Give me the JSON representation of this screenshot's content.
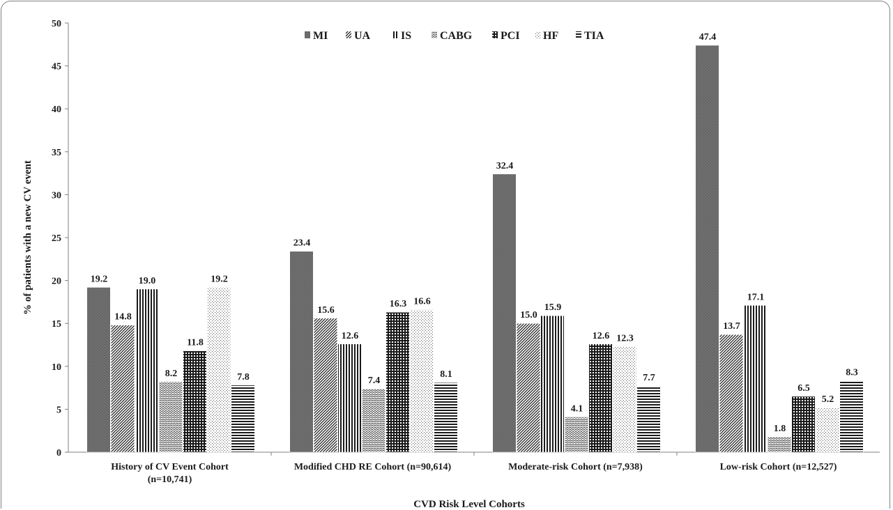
{
  "chart_data": {
    "type": "bar",
    "title": "",
    "xlabel": "CVD  Risk Level Cohorts",
    "ylabel": "% of patients with a new CV event",
    "ylim": [
      0,
      50
    ],
    "yticks": [
      0,
      5,
      10,
      15,
      20,
      25,
      30,
      35,
      40,
      45,
      50
    ],
    "grid": false,
    "legend_position": "top-center",
    "categories": [
      [
        "History of CV Event Cohort",
        "(n=10,741)"
      ],
      [
        "Modified CHD RE Cohort (n=90,614)"
      ],
      [
        "Moderate-risk Cohort (n=7,938)"
      ],
      [
        "Low-risk Cohort (n=12,527)"
      ]
    ],
    "series": [
      {
        "name": "MI",
        "pattern": "solid-gray",
        "values": [
          19.2,
          23.4,
          32.4,
          47.4
        ]
      },
      {
        "name": "UA",
        "pattern": "diag-dense",
        "values": [
          14.8,
          15.6,
          15.0,
          13.7
        ]
      },
      {
        "name": "IS",
        "pattern": "vertical",
        "values": [
          19.0,
          12.6,
          15.9,
          17.1
        ]
      },
      {
        "name": "CABG",
        "pattern": "wave",
        "values": [
          8.2,
          7.4,
          4.1,
          1.8
        ]
      },
      {
        "name": "PCI",
        "pattern": "grid",
        "values": [
          11.8,
          16.3,
          12.6,
          6.5
        ]
      },
      {
        "name": "HF",
        "pattern": "dots",
        "values": [
          19.2,
          16.6,
          12.3,
          5.2
        ]
      },
      {
        "name": "TIA",
        "pattern": "horizontal",
        "values": [
          7.8,
          8.1,
          7.7,
          8.3
        ]
      }
    ],
    "data_labels": [
      [
        "19.2",
        "23.4",
        "32.4",
        "47.4"
      ],
      [
        "14.8",
        "15.6",
        "15.0",
        "13.7"
      ],
      [
        "19.0",
        "12.6",
        "15.9",
        "17.1"
      ],
      [
        "8.2",
        "7.4",
        "4.1",
        "1.8"
      ],
      [
        "11.8",
        "16.3",
        "12.6",
        "6.5"
      ],
      [
        "19.2",
        "16.6",
        "12.3",
        "5.2"
      ],
      [
        "7.8",
        "8.1",
        "7.7",
        "8.3"
      ]
    ]
  }
}
